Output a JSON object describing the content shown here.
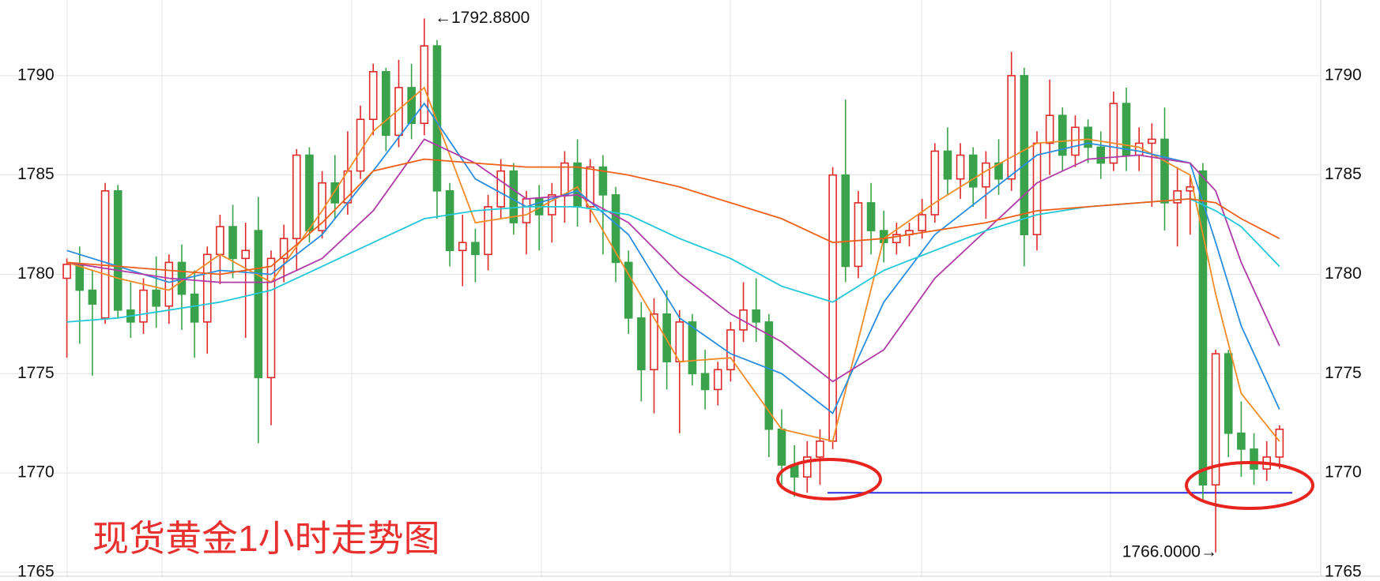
{
  "chart_data": {
    "type": "candlestick",
    "title": "现货黄金1小时走势图",
    "ylim": [
      1764.56,
      1793.81
    ],
    "yticks": [
      1765,
      1770,
      1775,
      1780,
      1785,
      1790
    ],
    "up_color": "#e02a2a",
    "down_color": "#3aa24a",
    "annotations": [
      {
        "value": 1792.88,
        "label": "←1792.8800"
      },
      {
        "value": 1766,
        "label": "1766.0000→"
      }
    ],
    "hline": {
      "value": 1769,
      "color": "#2a2ae0"
    },
    "ohlc": [
      [
        1779.8,
        1780.8,
        1775.8,
        1780.5
      ],
      [
        1780.5,
        1781.4,
        1776.5,
        1779.2
      ],
      [
        1779.2,
        1780.2,
        1774.9,
        1778.5
      ],
      [
        1777.8,
        1784.6,
        1777.5,
        1784.2
      ],
      [
        1784.2,
        1784.5,
        1777.8,
        1778.2
      ],
      [
        1778.2,
        1779.6,
        1776.8,
        1777.6
      ],
      [
        1777.6,
        1779.8,
        1777.0,
        1779.2
      ],
      [
        1779.2,
        1780.9,
        1777.3,
        1778.4
      ],
      [
        1778.4,
        1781.0,
        1777.5,
        1780.6
      ],
      [
        1780.6,
        1781.5,
        1777.2,
        1779.0
      ],
      [
        1779.0,
        1780.2,
        1775.8,
        1777.6
      ],
      [
        1777.6,
        1781.4,
        1776.0,
        1781.0
      ],
      [
        1781.0,
        1783.0,
        1779.5,
        1782.4
      ],
      [
        1782.4,
        1783.5,
        1779.8,
        1780.8
      ],
      [
        1780.8,
        1782.6,
        1776.8,
        1781.2
      ],
      [
        1782.2,
        1783.9,
        1771.5,
        1774.8
      ],
      [
        1774.8,
        1781.2,
        1772.4,
        1780.8
      ],
      [
        1780.8,
        1782.5,
        1779.6,
        1781.8
      ],
      [
        1781.8,
        1786.3,
        1780.2,
        1786.0
      ],
      [
        1786.0,
        1786.4,
        1781.6,
        1782.2
      ],
      [
        1782.2,
        1785.2,
        1781.8,
        1784.6
      ],
      [
        1784.6,
        1786.0,
        1782.8,
        1783.6
      ],
      [
        1783.6,
        1787.2,
        1783.0,
        1785.2
      ],
      [
        1785.2,
        1788.5,
        1784.8,
        1787.8
      ],
      [
        1787.8,
        1790.6,
        1787.0,
        1790.2
      ],
      [
        1790.2,
        1790.4,
        1786.2,
        1787.0
      ],
      [
        1787.0,
        1790.8,
        1786.4,
        1789.4
      ],
      [
        1789.4,
        1790.6,
        1786.8,
        1787.6
      ],
      [
        1787.6,
        1792.88,
        1787.0,
        1791.5
      ],
      [
        1791.5,
        1791.8,
        1782.8,
        1784.2
      ],
      [
        1784.2,
        1784.6,
        1780.4,
        1781.2
      ],
      [
        1781.2,
        1783.0,
        1779.4,
        1781.6
      ],
      [
        1781.6,
        1782.3,
        1779.6,
        1781.0
      ],
      [
        1781.0,
        1784.0,
        1780.2,
        1783.4
      ],
      [
        1783.4,
        1785.8,
        1782.8,
        1785.2
      ],
      [
        1785.2,
        1785.6,
        1782.0,
        1782.6
      ],
      [
        1782.6,
        1784.2,
        1781.0,
        1783.8
      ],
      [
        1783.8,
        1784.5,
        1781.2,
        1783.0
      ],
      [
        1783.0,
        1784.6,
        1781.6,
        1784.0
      ],
      [
        1784.0,
        1786.2,
        1782.6,
        1785.6
      ],
      [
        1785.6,
        1786.8,
        1782.4,
        1783.4
      ],
      [
        1783.4,
        1785.8,
        1782.6,
        1785.4
      ],
      [
        1785.4,
        1786.0,
        1781.0,
        1784.0
      ],
      [
        1784.0,
        1784.4,
        1779.6,
        1780.6
      ],
      [
        1780.6,
        1781.2,
        1777.0,
        1777.8
      ],
      [
        1777.8,
        1778.6,
        1773.6,
        1775.2
      ],
      [
        1775.2,
        1778.8,
        1773.0,
        1778.0
      ],
      [
        1778.0,
        1779.2,
        1774.2,
        1775.6
      ],
      [
        1775.6,
        1778.2,
        1772.0,
        1777.6
      ],
      [
        1777.6,
        1778.0,
        1774.4,
        1775.0
      ],
      [
        1775.0,
        1776.2,
        1773.2,
        1774.2
      ],
      [
        1774.2,
        1775.6,
        1773.4,
        1775.2
      ],
      [
        1775.2,
        1777.6,
        1774.6,
        1777.2
      ],
      [
        1777.2,
        1779.6,
        1776.6,
        1778.2
      ],
      [
        1778.2,
        1779.8,
        1776.6,
        1777.6
      ],
      [
        1777.6,
        1778.0,
        1770.8,
        1772.2
      ],
      [
        1772.2,
        1773.2,
        1769.2,
        1770.4
      ],
      [
        1770.4,
        1771.4,
        1768.8,
        1769.8
      ],
      [
        1769.8,
        1771.6,
        1769.0,
        1770.8
      ],
      [
        1770.8,
        1772.2,
        1769.4,
        1771.6
      ],
      [
        1771.6,
        1785.4,
        1771.2,
        1785.0
      ],
      [
        1785.0,
        1788.8,
        1779.6,
        1780.4
      ],
      [
        1780.4,
        1784.2,
        1779.8,
        1783.6
      ],
      [
        1783.6,
        1784.6,
        1781.0,
        1782.2
      ],
      [
        1782.2,
        1783.2,
        1780.6,
        1781.6
      ],
      [
        1781.6,
        1782.6,
        1781.0,
        1782.0
      ],
      [
        1782.0,
        1782.6,
        1781.4,
        1782.2
      ],
      [
        1782.2,
        1783.8,
        1781.8,
        1783.0
      ],
      [
        1783.0,
        1786.6,
        1782.6,
        1786.2
      ],
      [
        1786.2,
        1787.4,
        1784.0,
        1784.8
      ],
      [
        1784.8,
        1786.6,
        1783.8,
        1786.0
      ],
      [
        1786.0,
        1786.4,
        1783.4,
        1784.4
      ],
      [
        1784.4,
        1786.2,
        1782.8,
        1785.6
      ],
      [
        1785.6,
        1786.8,
        1784.0,
        1784.8
      ],
      [
        1784.8,
        1791.2,
        1784.2,
        1790.0
      ],
      [
        1790.0,
        1790.4,
        1780.4,
        1782.0
      ],
      [
        1782.0,
        1787.2,
        1781.2,
        1786.6
      ],
      [
        1786.6,
        1789.8,
        1785.0,
        1788.0
      ],
      [
        1788.0,
        1788.4,
        1785.2,
        1786.0
      ],
      [
        1786.0,
        1788.0,
        1785.4,
        1787.4
      ],
      [
        1787.4,
        1787.8,
        1785.6,
        1786.4
      ],
      [
        1786.4,
        1787.2,
        1784.8,
        1785.6
      ],
      [
        1785.6,
        1789.2,
        1785.2,
        1788.6
      ],
      [
        1788.6,
        1789.4,
        1785.2,
        1786.0
      ],
      [
        1786.0,
        1787.4,
        1785.2,
        1786.6
      ],
      [
        1786.6,
        1787.6,
        1783.4,
        1786.8
      ],
      [
        1786.8,
        1788.4,
        1782.2,
        1783.6
      ],
      [
        1783.6,
        1785.4,
        1781.4,
        1784.2
      ],
      [
        1784.2,
        1785.0,
        1782.0,
        1784.4
      ],
      [
        1785.2,
        1785.6,
        1768.6,
        1769.4
      ],
      [
        1769.4,
        1776.2,
        1766.0,
        1776.0
      ],
      [
        1776.0,
        1776.2,
        1770.8,
        1772.0
      ],
      [
        1772.0,
        1773.6,
        1769.8,
        1771.2
      ],
      [
        1771.2,
        1772.0,
        1769.4,
        1770.2
      ],
      [
        1770.2,
        1771.6,
        1769.6,
        1770.8
      ],
      [
        1770.8,
        1772.4,
        1770.2,
        1772.2
      ]
    ],
    "series": [
      {
        "color": "#f28c28",
        "x": [
          0,
          4,
          8,
          12,
          16,
          20,
          24,
          28,
          32,
          36,
          40,
          44,
          48,
          52,
          56,
          60,
          64,
          68,
          72,
          76,
          80,
          84,
          88,
          90,
          92,
          95
        ],
        "values": [
          1780.6,
          1779.8,
          1779.2,
          1781.0,
          1779.6,
          1783.2,
          1787.2,
          1789.4,
          1782.6,
          1783.0,
          1784.4,
          1780.0,
          1775.6,
          1775.8,
          1772.2,
          1771.6,
          1781.8,
          1783.6,
          1785.2,
          1786.6,
          1786.8,
          1786.4,
          1785.0,
          1779.0,
          1774.0,
          1771.6
        ]
      },
      {
        "color": "#2a8de0",
        "x": [
          0,
          4,
          8,
          12,
          16,
          20,
          24,
          28,
          32,
          36,
          40,
          44,
          48,
          52,
          56,
          60,
          64,
          68,
          72,
          76,
          80,
          84,
          88,
          90,
          92,
          95
        ],
        "values": [
          1781.2,
          1780.4,
          1779.6,
          1780.2,
          1780.0,
          1782.0,
          1785.2,
          1788.6,
          1784.8,
          1783.4,
          1784.2,
          1782.0,
          1777.8,
          1776.0,
          1775.0,
          1773.0,
          1778.6,
          1782.0,
          1784.0,
          1786.0,
          1786.6,
          1786.2,
          1785.6,
          1781.6,
          1777.4,
          1773.2
        ]
      },
      {
        "color": "#b03aa6",
        "x": [
          0,
          4,
          8,
          12,
          16,
          20,
          24,
          28,
          32,
          36,
          40,
          44,
          48,
          52,
          56,
          60,
          64,
          68,
          72,
          76,
          80,
          84,
          88,
          90,
          92,
          95
        ],
        "values": [
          1780.6,
          1780.2,
          1779.8,
          1779.6,
          1779.6,
          1780.8,
          1783.2,
          1786.8,
          1785.6,
          1783.8,
          1784.0,
          1782.6,
          1780.0,
          1778.0,
          1776.6,
          1774.6,
          1776.2,
          1779.8,
          1782.2,
          1784.6,
          1785.8,
          1786.0,
          1785.6,
          1784.2,
          1780.6,
          1776.4
        ]
      },
      {
        "color": "#22c8d8",
        "x": [
          0,
          4,
          8,
          12,
          16,
          20,
          24,
          28,
          32,
          36,
          40,
          44,
          48,
          52,
          56,
          60,
          64,
          68,
          72,
          76,
          80,
          84,
          88,
          90,
          92,
          95
        ],
        "values": [
          1777.6,
          1777.8,
          1778.2,
          1778.6,
          1779.2,
          1780.4,
          1781.6,
          1782.8,
          1783.2,
          1783.4,
          1783.4,
          1783.0,
          1781.8,
          1780.8,
          1779.4,
          1778.6,
          1780.2,
          1781.2,
          1782.2,
          1783.0,
          1783.4,
          1783.6,
          1783.8,
          1783.2,
          1782.4,
          1780.4
        ]
      },
      {
        "color": "#f06018",
        "x": [
          0,
          4,
          8,
          12,
          16,
          20,
          24,
          28,
          32,
          36,
          40,
          44,
          48,
          52,
          56,
          60,
          64,
          68,
          72,
          76,
          80,
          84,
          88,
          90,
          92,
          95
        ],
        "values": [
          1780.6,
          1780.4,
          1780.2,
          1780.0,
          1780.4,
          1782.6,
          1785.2,
          1785.8,
          1785.6,
          1785.4,
          1785.4,
          1785.0,
          1784.4,
          1783.6,
          1782.8,
          1781.6,
          1781.8,
          1782.2,
          1782.6,
          1783.2,
          1783.4,
          1783.6,
          1783.8,
          1783.6,
          1782.8,
          1781.8
        ]
      }
    ]
  }
}
